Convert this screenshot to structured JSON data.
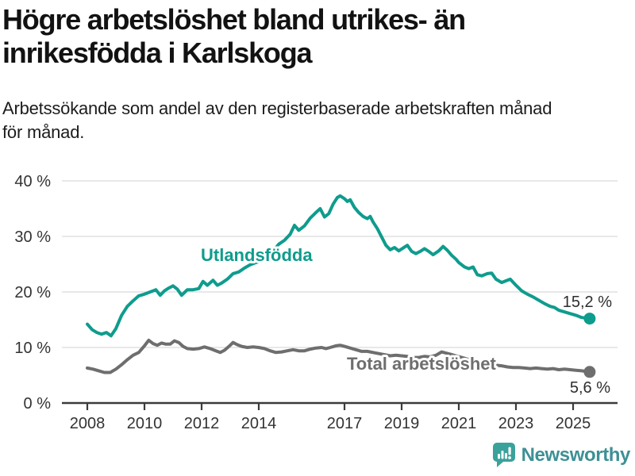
{
  "header": {
    "title_line1": "Högre arbetslöshet bland utrikes- än",
    "title_line2": "inrikesfödda i Karlskoga",
    "subtitle_line1": "Arbetssökande som andel av den registerbaserade arbetskraften månad",
    "subtitle_line2": "för månad."
  },
  "footer": {
    "brand": "Newsworthy"
  },
  "colors": {
    "accent_teal": "#0e9c8d",
    "line_gray": "#6e6e6e",
    "grid": "#d9d9d9",
    "axis_line": "#3b3b3b",
    "axis_text": "#333333",
    "logo_teal": "#3aa29b",
    "wordmark": "#3d9095"
  },
  "chart_data": {
    "type": "line",
    "title": "Högre arbetslöshet bland utrikes- än inrikesfödda i Karlskoga",
    "subtitle": "Arbetssökande som andel av den registerbaserade arbetskraften månad för månad.",
    "x_unit": "year (decimal, monthly observations)",
    "xlim": [
      2007.1,
      2026.6
    ],
    "ylim": [
      0,
      42
    ],
    "grid": "horizontal",
    "x_ticks": [
      2008,
      2010,
      2012,
      2014,
      2017,
      2019,
      2021,
      2023,
      2025
    ],
    "x_tick_labels": [
      "2008",
      "2010",
      "2012",
      "2014",
      "2017",
      "2019",
      "2021",
      "2023",
      "2025"
    ],
    "y_ticks": [
      0,
      10,
      20,
      30,
      40
    ],
    "y_tick_labels": [
      "0 %",
      "10 %",
      "20 %",
      "30 %",
      "40 %"
    ],
    "legend_position": "inline-labels",
    "series": [
      {
        "name": "Utlandsfödda",
        "color": "#0e9c8d",
        "end_label": "15,2 %",
        "end_value": 15.2,
        "points": [
          [
            2008.0,
            14.2
          ],
          [
            2008.17,
            13.2
          ],
          [
            2008.33,
            12.7
          ],
          [
            2008.5,
            12.4
          ],
          [
            2008.67,
            12.7
          ],
          [
            2008.83,
            12.1
          ],
          [
            2009.0,
            13.4
          ],
          [
            2009.2,
            15.8
          ],
          [
            2009.4,
            17.4
          ],
          [
            2009.6,
            18.4
          ],
          [
            2009.8,
            19.3
          ],
          [
            2010.0,
            19.6
          ],
          [
            2010.2,
            20.0
          ],
          [
            2010.4,
            20.4
          ],
          [
            2010.55,
            19.4
          ],
          [
            2010.7,
            20.2
          ],
          [
            2010.85,
            20.7
          ],
          [
            2011.0,
            21.1
          ],
          [
            2011.15,
            20.5
          ],
          [
            2011.3,
            19.4
          ],
          [
            2011.5,
            20.4
          ],
          [
            2011.7,
            20.4
          ],
          [
            2011.9,
            20.6
          ],
          [
            2012.05,
            21.9
          ],
          [
            2012.2,
            21.2
          ],
          [
            2012.4,
            22.1
          ],
          [
            2012.55,
            21.2
          ],
          [
            2012.7,
            21.6
          ],
          [
            2012.9,
            22.3
          ],
          [
            2013.1,
            23.3
          ],
          [
            2013.3,
            23.6
          ],
          [
            2013.5,
            24.3
          ],
          [
            2013.7,
            24.9
          ],
          [
            2013.9,
            25.3
          ],
          [
            2014.1,
            25.6
          ],
          [
            2014.3,
            26.2
          ],
          [
            2014.5,
            27.3
          ],
          [
            2014.7,
            28.6
          ],
          [
            2014.9,
            29.3
          ],
          [
            2015.1,
            30.4
          ],
          [
            2015.25,
            32.0
          ],
          [
            2015.4,
            31.1
          ],
          [
            2015.6,
            31.9
          ],
          [
            2015.8,
            33.3
          ],
          [
            2016.0,
            34.3
          ],
          [
            2016.15,
            35.0
          ],
          [
            2016.3,
            33.5
          ],
          [
            2016.45,
            34.1
          ],
          [
            2016.6,
            35.8
          ],
          [
            2016.75,
            37.0
          ],
          [
            2016.85,
            37.3
          ],
          [
            2017.0,
            36.8
          ],
          [
            2017.1,
            36.3
          ],
          [
            2017.2,
            36.6
          ],
          [
            2017.35,
            35.2
          ],
          [
            2017.5,
            34.3
          ],
          [
            2017.65,
            33.6
          ],
          [
            2017.8,
            33.2
          ],
          [
            2017.9,
            33.6
          ],
          [
            2018.0,
            32.6
          ],
          [
            2018.15,
            31.4
          ],
          [
            2018.3,
            29.9
          ],
          [
            2018.45,
            28.4
          ],
          [
            2018.6,
            27.6
          ],
          [
            2018.75,
            28.0
          ],
          [
            2018.9,
            27.4
          ],
          [
            2019.05,
            27.9
          ],
          [
            2019.2,
            28.4
          ],
          [
            2019.35,
            27.3
          ],
          [
            2019.5,
            26.9
          ],
          [
            2019.65,
            27.3
          ],
          [
            2019.8,
            27.8
          ],
          [
            2019.95,
            27.3
          ],
          [
            2020.1,
            26.7
          ],
          [
            2020.3,
            27.4
          ],
          [
            2020.45,
            28.2
          ],
          [
            2020.6,
            27.5
          ],
          [
            2020.75,
            26.6
          ],
          [
            2020.9,
            25.9
          ],
          [
            2021.0,
            25.3
          ],
          [
            2021.2,
            24.5
          ],
          [
            2021.35,
            24.2
          ],
          [
            2021.5,
            24.5
          ],
          [
            2021.65,
            23.1
          ],
          [
            2021.8,
            22.9
          ],
          [
            2022.0,
            23.3
          ],
          [
            2022.15,
            23.4
          ],
          [
            2022.3,
            22.3
          ],
          [
            2022.5,
            21.7
          ],
          [
            2022.65,
            22.0
          ],
          [
            2022.8,
            22.3
          ],
          [
            2023.0,
            21.2
          ],
          [
            2023.2,
            20.2
          ],
          [
            2023.4,
            19.6
          ],
          [
            2023.6,
            19.1
          ],
          [
            2023.8,
            18.5
          ],
          [
            2024.0,
            17.9
          ],
          [
            2024.2,
            17.4
          ],
          [
            2024.35,
            17.2
          ],
          [
            2024.5,
            16.7
          ],
          [
            2024.7,
            16.4
          ],
          [
            2024.9,
            16.1
          ],
          [
            2025.1,
            15.8
          ],
          [
            2025.3,
            15.4
          ],
          [
            2025.45,
            15.3
          ],
          [
            2025.58,
            15.2
          ]
        ]
      },
      {
        "name": "Total arbetslöshet",
        "color": "#6e6e6e",
        "end_label": "5,6 %",
        "end_value": 5.6,
        "points": [
          [
            2008.0,
            6.3
          ],
          [
            2008.2,
            6.1
          ],
          [
            2008.4,
            5.8
          ],
          [
            2008.6,
            5.5
          ],
          [
            2008.8,
            5.5
          ],
          [
            2009.0,
            6.1
          ],
          [
            2009.2,
            6.9
          ],
          [
            2009.4,
            7.8
          ],
          [
            2009.6,
            8.6
          ],
          [
            2009.8,
            9.1
          ],
          [
            2010.0,
            10.3
          ],
          [
            2010.15,
            11.3
          ],
          [
            2010.3,
            10.7
          ],
          [
            2010.45,
            10.4
          ],
          [
            2010.6,
            10.8
          ],
          [
            2010.75,
            10.6
          ],
          [
            2010.9,
            10.6
          ],
          [
            2011.05,
            11.2
          ],
          [
            2011.2,
            10.9
          ],
          [
            2011.35,
            10.2
          ],
          [
            2011.5,
            9.8
          ],
          [
            2011.7,
            9.7
          ],
          [
            2011.9,
            9.8
          ],
          [
            2012.1,
            10.1
          ],
          [
            2012.3,
            9.8
          ],
          [
            2012.5,
            9.4
          ],
          [
            2012.65,
            9.1
          ],
          [
            2012.8,
            9.5
          ],
          [
            2013.0,
            10.4
          ],
          [
            2013.1,
            10.9
          ],
          [
            2013.25,
            10.5
          ],
          [
            2013.4,
            10.2
          ],
          [
            2013.6,
            10.0
          ],
          [
            2013.8,
            10.1
          ],
          [
            2014.0,
            10.0
          ],
          [
            2014.2,
            9.8
          ],
          [
            2014.4,
            9.4
          ],
          [
            2014.6,
            9.1
          ],
          [
            2014.8,
            9.2
          ],
          [
            2015.0,
            9.4
          ],
          [
            2015.2,
            9.6
          ],
          [
            2015.4,
            9.4
          ],
          [
            2015.6,
            9.4
          ],
          [
            2015.8,
            9.7
          ],
          [
            2016.0,
            9.9
          ],
          [
            2016.2,
            10.0
          ],
          [
            2016.35,
            9.8
          ],
          [
            2016.5,
            10.0
          ],
          [
            2016.7,
            10.3
          ],
          [
            2016.85,
            10.4
          ],
          [
            2017.0,
            10.2
          ],
          [
            2017.2,
            9.9
          ],
          [
            2017.4,
            9.6
          ],
          [
            2017.6,
            9.3
          ],
          [
            2017.8,
            9.3
          ],
          [
            2018.0,
            9.1
          ],
          [
            2018.2,
            8.9
          ],
          [
            2018.4,
            8.7
          ],
          [
            2018.6,
            8.5
          ],
          [
            2018.8,
            8.6
          ],
          [
            2019.0,
            8.5
          ],
          [
            2019.2,
            8.4
          ],
          [
            2019.4,
            8.2
          ],
          [
            2019.6,
            8.2
          ],
          [
            2019.8,
            8.4
          ],
          [
            2020.0,
            8.3
          ],
          [
            2020.2,
            8.6
          ],
          [
            2020.4,
            9.2
          ],
          [
            2020.55,
            9.0
          ],
          [
            2020.7,
            8.8
          ],
          [
            2020.9,
            8.5
          ],
          [
            2021.1,
            8.2
          ],
          [
            2021.3,
            7.9
          ],
          [
            2021.5,
            7.6
          ],
          [
            2021.7,
            7.4
          ],
          [
            2021.9,
            7.1
          ],
          [
            2022.1,
            7.0
          ],
          [
            2022.3,
            6.8
          ],
          [
            2022.5,
            6.7
          ],
          [
            2022.7,
            6.5
          ],
          [
            2022.9,
            6.4
          ],
          [
            2023.1,
            6.4
          ],
          [
            2023.3,
            6.3
          ],
          [
            2023.5,
            6.2
          ],
          [
            2023.7,
            6.3
          ],
          [
            2023.9,
            6.2
          ],
          [
            2024.1,
            6.1
          ],
          [
            2024.3,
            6.2
          ],
          [
            2024.5,
            6.0
          ],
          [
            2024.7,
            6.1
          ],
          [
            2024.9,
            6.0
          ],
          [
            2025.1,
            5.9
          ],
          [
            2025.3,
            5.8
          ],
          [
            2025.45,
            5.7
          ],
          [
            2025.58,
            5.6
          ]
        ]
      }
    ]
  }
}
